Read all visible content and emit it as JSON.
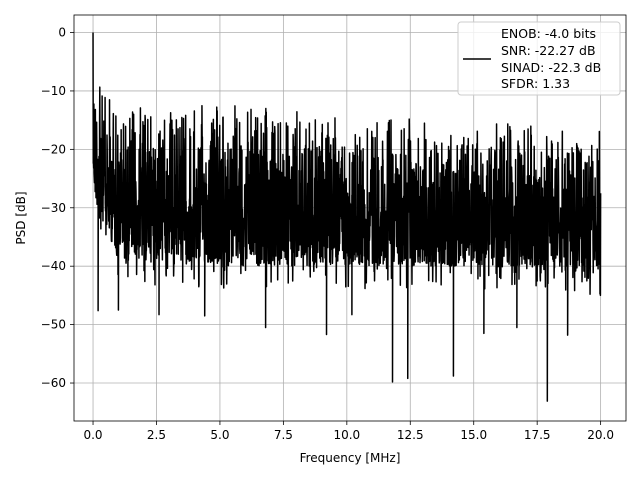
{
  "chart_data": {
    "type": "line",
    "xlabel": "Frequency [MHz]",
    "ylabel": "PSD [dB]",
    "xlim": [
      -0.75,
      21.0
    ],
    "ylim": [
      -66.5,
      3.0
    ],
    "xticks": [
      0.0,
      2.5,
      5.0,
      7.5,
      10.0,
      12.5,
      15.0,
      17.5,
      20.0
    ],
    "xtick_labels": [
      "0.0",
      "2.5",
      "5.0",
      "7.5",
      "10.0",
      "12.5",
      "15.0",
      "17.5",
      "20.0"
    ],
    "yticks": [
      0,
      -10,
      -20,
      -30,
      -40,
      -50,
      -60
    ],
    "ytick_labels": [
      "0",
      "−10",
      "−20",
      "−30",
      "−40",
      "−50",
      "−60"
    ],
    "grid": true,
    "legend_position": "upper-right",
    "series_color": "#000000",
    "series": [
      {
        "name": "",
        "legend_lines": [
          "ENOB: -4.0 bits",
          "SNR: -22.27 dB",
          "SINAD: -22.3 dB",
          "SFDR: 1.33"
        ],
        "x_range": [
          0.0,
          20.0
        ],
        "peak": {
          "x": 0.0,
          "y": 0.0
        },
        "upper_envelope": [
          [
            0.0,
            0.0
          ],
          [
            0.1,
            -7.0
          ],
          [
            0.5,
            -9.5
          ],
          [
            1.5,
            -11.0
          ],
          [
            5.0,
            -11.5
          ],
          [
            7.5,
            -12.5
          ],
          [
            10.0,
            -13.5
          ],
          [
            15.0,
            -14.5
          ],
          [
            20.0,
            -15.0
          ]
        ],
        "lower_envelope": [
          [
            0.0,
            -28.0
          ],
          [
            1.0,
            -39.0
          ],
          [
            5.0,
            -40.0
          ],
          [
            10.0,
            -40.0
          ],
          [
            15.0,
            -40.0
          ],
          [
            20.0,
            -41.0
          ]
        ],
        "notable_dips": [
          [
            0.2,
            -47.6
          ],
          [
            1.0,
            -47.5
          ],
          [
            2.6,
            -48.3
          ],
          [
            4.4,
            -48.5
          ],
          [
            6.8,
            -50.5
          ],
          [
            9.2,
            -51.7
          ],
          [
            10.2,
            -48.3
          ],
          [
            11.8,
            -59.8
          ],
          [
            12.4,
            -59.2
          ],
          [
            14.2,
            -58.8
          ],
          [
            15.4,
            -51.5
          ],
          [
            16.7,
            -50.5
          ],
          [
            17.9,
            -63.1
          ],
          [
            18.7,
            -51.8
          ]
        ]
      }
    ]
  }
}
